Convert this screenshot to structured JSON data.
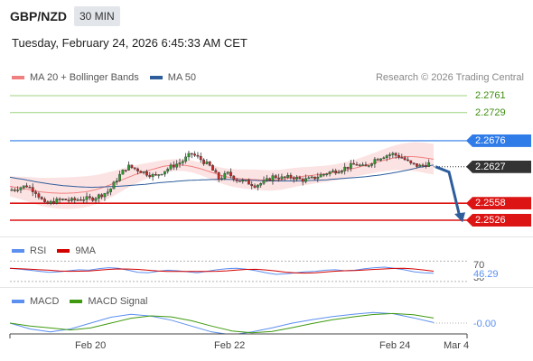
{
  "header": {
    "symbol": "GBP/NZD",
    "interval": "30 MIN",
    "datetime": "Tuesday, February 24, 2026 6:45:33 AM CET"
  },
  "legend": {
    "ma20": "MA 20 + Bollinger Bands",
    "ma50": "MA 50",
    "research": "Research © 2026 Trading Central",
    "ma20_color": "#f08080",
    "ma50_color": "#2e5d9b"
  },
  "levels": [
    {
      "value": "2.2761",
      "style": "plain",
      "color": "#3f8f0f",
      "line": "#9fd27f"
    },
    {
      "value": "2.2729",
      "style": "plain",
      "color": "#3f8f0f",
      "line": "#9fd27f"
    },
    {
      "value": "2.2676",
      "style": "fill",
      "color": "#2f7be8",
      "line": "#2f7be8"
    },
    {
      "value": "2.2627",
      "style": "fill",
      "color": "#333333",
      "line": "dotted"
    },
    {
      "value": "2.2558",
      "style": "fill",
      "color": "#dc1414",
      "line": "#dc1414"
    },
    {
      "value": "2.2526",
      "style": "fill",
      "color": "#dc1414",
      "line": "#dc1414"
    }
  ],
  "rsi": {
    "label": "RSI",
    "ma_label": "9MA",
    "rsi_color": "#5b8ff0",
    "ma_color": "#d40000",
    "level_70": "70",
    "value": "46.29",
    "level_30": "30"
  },
  "macd": {
    "label": "MACD",
    "signal_label": "MACD Signal",
    "macd_color": "#5b8ff0",
    "signal_color": "#3f9a10",
    "value": "-0.00"
  },
  "x_axis": {
    "labels": [
      "Feb 20",
      "Feb 22",
      "Feb 24",
      "Mar 4"
    ]
  },
  "chart_data": {
    "type": "candlestick",
    "instrument": "GBP/NZD",
    "timeframe": "30 MIN",
    "ylim": [
      2.2515,
      2.2785
    ],
    "close_path": [
      2.2582,
      2.2587,
      2.2591,
      2.2579,
      2.2555,
      2.2562,
      2.2565,
      2.2563,
      2.2567,
      2.2566,
      2.2573,
      2.2581,
      2.2608,
      2.2628,
      2.2622,
      2.2615,
      2.2609,
      2.2619,
      2.2629,
      2.2637,
      2.2652,
      2.2641,
      2.2628,
      2.2604,
      2.2614,
      2.2602,
      2.2598,
      2.2592,
      2.2598,
      2.2609,
      2.2605,
      2.2608,
      2.2602,
      2.2603,
      2.261,
      2.2616,
      2.262,
      2.2626,
      2.2632,
      2.2625,
      2.264,
      2.2647,
      2.2651,
      2.2645,
      2.2632,
      2.2628,
      2.2633
    ],
    "ma20": [
      2.259,
      2.2587,
      2.2584,
      2.258,
      2.2578,
      2.2577,
      2.2577,
      2.2578,
      2.258,
      2.2584,
      2.259,
      2.2597,
      2.2605,
      2.2612,
      2.2618,
      2.2623,
      2.2628,
      2.263,
      2.263,
      2.2627,
      2.2622,
      2.2616,
      2.261,
      2.2606,
      2.2604,
      2.2603,
      2.2602,
      2.2601,
      2.2602,
      2.2605,
      2.2608,
      2.261,
      2.2612,
      2.2614,
      2.2617,
      2.2621,
      2.2625,
      2.263,
      2.2635,
      2.264,
      2.2644,
      2.2646,
      2.2646,
      2.2644,
      2.2641
    ],
    "ma50": [
      2.2607,
      2.2603,
      2.2598,
      2.2594,
      2.2591,
      2.2589,
      2.2588,
      2.2589,
      2.259,
      2.2592,
      2.2594,
      2.2597,
      2.2599,
      2.2601,
      2.2602,
      2.2603,
      2.2603,
      2.2602,
      2.2601,
      2.26,
      2.26,
      2.26,
      2.2601,
      2.2602,
      2.2604,
      2.2606,
      2.2608,
      2.2611,
      2.2615,
      2.262,
      2.2626,
      2.263
    ],
    "bollinger_half_width": 0.0025,
    "rsi_series": [
      56,
      54,
      52,
      50,
      48,
      49,
      51,
      53,
      52,
      55,
      57,
      56,
      52,
      48,
      47,
      50,
      52,
      51,
      49,
      47,
      50,
      53,
      55,
      56,
      54,
      51,
      47,
      44,
      45,
      47,
      49,
      50,
      52,
      53,
      51,
      52,
      55,
      57,
      58,
      56,
      53,
      49,
      47,
      46
    ],
    "rsi_last": 46.29,
    "rsi_ylim": [
      28,
      74
    ],
    "macd_series": [
      0.0,
      -0.001,
      -0.0015,
      -0.001,
      0.0,
      0.001,
      0.0015,
      0.0012,
      0.0005,
      -0.0005,
      -0.0015,
      -0.002,
      -0.0015,
      -0.0008,
      0.0,
      0.0006,
      0.0011,
      0.0015,
      0.0018,
      0.0016,
      0.0009,
      0.0001
    ],
    "macd_last": -0.0,
    "forecast": {
      "from": 2.2627,
      "to": 2.2526,
      "direction": "down"
    },
    "x_labels": [
      "Feb 20",
      "Feb 22",
      "Feb 24",
      "Mar 4"
    ]
  }
}
